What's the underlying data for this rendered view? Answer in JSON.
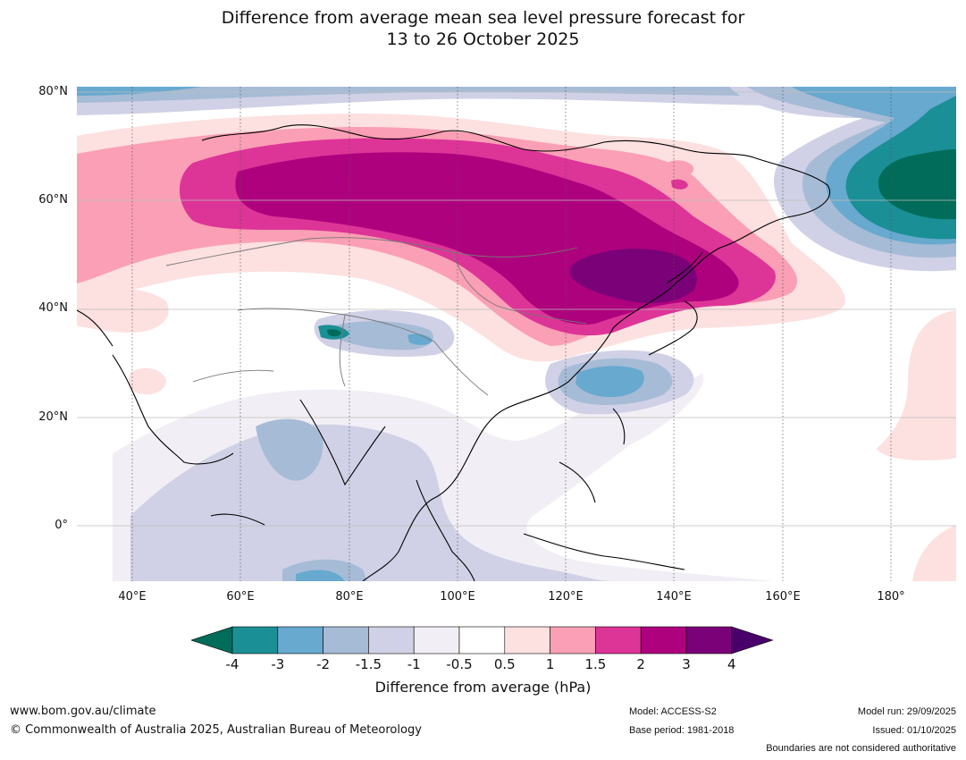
{
  "title": {
    "line1": "Difference from average mean sea level pressure forecast for",
    "line2": "13 to 26 October 2025"
  },
  "lat_labels": [
    "80°N",
    "60°N",
    "40°N",
    "20°N",
    "0°"
  ],
  "lon_labels": [
    "40°E",
    "60°E",
    "80°E",
    "100°E",
    "120°E",
    "140°E",
    "160°E",
    "180°"
  ],
  "colorbar": {
    "ticks": [
      "-4",
      "-3",
      "-2",
      "-1.5",
      "-1",
      "-0.5",
      "0.5",
      "1",
      "1.5",
      "2",
      "3",
      "4"
    ],
    "colors": [
      "#1b8f96",
      "#67a9cf",
      "#a6bbd6",
      "#d0d1e6",
      "#f2eef5",
      "#ffffff",
      "#fde0e0",
      "#fa9fb5",
      "#dd3497",
      "#ae017e",
      "#7a0177"
    ],
    "under_color": "#016c59",
    "over_color": "#49006a",
    "title": "Difference from average (hPa)"
  },
  "footer": {
    "website": "www.bom.gov.au/climate",
    "copyright": "© Commonwealth of Australia 2025, Australian Bureau of Meteorology",
    "model": "Model: ACCESS-S2",
    "base_period": "Base period: 1981-2018",
    "model_run": "Model run: 29/09/2025",
    "issued": "Issued: 01/10/2025",
    "disclaimer": "Boundaries are not considered authoritative"
  }
}
